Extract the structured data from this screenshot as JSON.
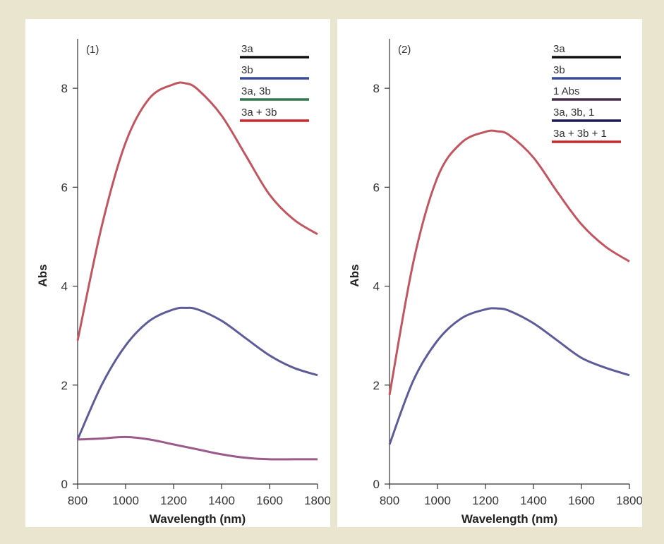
{
  "colors": {
    "background": "#e9e5cf",
    "panel": "#ffffff",
    "axis": "#333333"
  },
  "chart_data": [
    {
      "type": "line",
      "panel_label": "(1)",
      "xlabel": "Wavelength (nm)",
      "ylabel": "Abs",
      "xlim": [
        800,
        1800
      ],
      "ylim": [
        0,
        9
      ],
      "x_ticks": [
        800,
        1000,
        1200,
        1400,
        1600,
        1800
      ],
      "y_ticks": [
        0,
        2,
        4,
        6,
        8
      ],
      "legend_position": "top-right",
      "legend": [
        {
          "label": "3a",
          "color": "#111111"
        },
        {
          "label": "3b",
          "color": "#3a4a9a"
        },
        {
          "label": "3a, 3b",
          "color": "#2e7a4e"
        },
        {
          "label": "3a + 3b",
          "color": "#c8282e"
        }
      ],
      "series": [
        {
          "color": "#c15560",
          "x": [
            800,
            900,
            1000,
            1100,
            1200,
            1250,
            1300,
            1400,
            1500,
            1600,
            1700,
            1800
          ],
          "y": [
            2.9,
            5.2,
            6.9,
            7.8,
            8.08,
            8.1,
            7.98,
            7.45,
            6.65,
            5.85,
            5.35,
            5.05
          ]
        },
        {
          "color": "#5d5c99",
          "x": [
            800,
            900,
            1000,
            1100,
            1200,
            1250,
            1300,
            1400,
            1500,
            1600,
            1700,
            1800
          ],
          "y": [
            0.9,
            2.0,
            2.8,
            3.3,
            3.53,
            3.56,
            3.53,
            3.3,
            2.95,
            2.6,
            2.35,
            2.2
          ]
        },
        {
          "color": "#9a5a8a",
          "x": [
            800,
            900,
            1000,
            1100,
            1200,
            1300,
            1400,
            1500,
            1600,
            1700,
            1800
          ],
          "y": [
            0.9,
            0.92,
            0.95,
            0.9,
            0.8,
            0.7,
            0.6,
            0.53,
            0.5,
            0.5,
            0.5
          ]
        }
      ]
    },
    {
      "type": "line",
      "panel_label": "(2)",
      "xlabel": "Wavelength (nm)",
      "ylabel": "Abs",
      "xlim": [
        800,
        1800
      ],
      "ylim": [
        0,
        9
      ],
      "x_ticks": [
        800,
        1000,
        1200,
        1400,
        1600,
        1800
      ],
      "y_ticks": [
        0,
        2,
        4,
        6,
        8
      ],
      "legend_position": "top-right",
      "legend": [
        {
          "label": "3a",
          "color": "#111111"
        },
        {
          "label": "3b",
          "color": "#3a4a9a"
        },
        {
          "label": "1 Abs",
          "color": "#4a2a4a"
        },
        {
          "label": "3a, 3b, 1",
          "color": "#1a1a55"
        },
        {
          "label": "3a + 3b + 1",
          "color": "#c8282e"
        }
      ],
      "series": [
        {
          "color": "#c15560",
          "x": [
            800,
            900,
            1000,
            1100,
            1200,
            1250,
            1300,
            1400,
            1500,
            1600,
            1700,
            1800
          ],
          "y": [
            1.8,
            4.5,
            6.2,
            6.9,
            7.12,
            7.13,
            7.05,
            6.6,
            5.9,
            5.25,
            4.8,
            4.5
          ]
        },
        {
          "color": "#5d5c99",
          "x": [
            800,
            900,
            1000,
            1100,
            1200,
            1250,
            1300,
            1400,
            1500,
            1600,
            1700,
            1800
          ],
          "y": [
            0.8,
            2.1,
            2.9,
            3.35,
            3.53,
            3.55,
            3.5,
            3.25,
            2.9,
            2.55,
            2.35,
            2.2
          ]
        }
      ]
    }
  ]
}
